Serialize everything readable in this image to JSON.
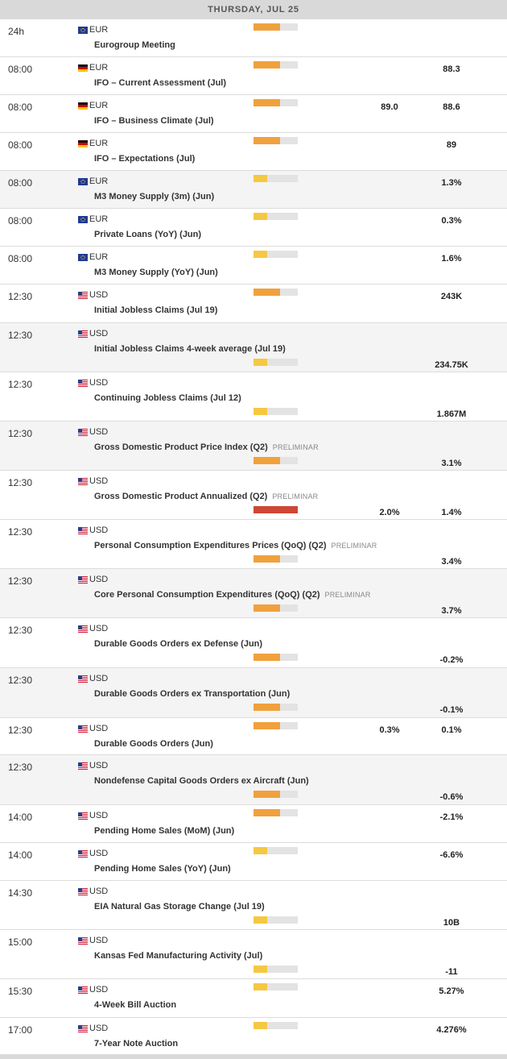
{
  "header": {
    "date": "THURSDAY, JUL 25"
  },
  "colors": {
    "high": "#cf4634",
    "medium": "#f0a13c",
    "low": "#f5c842",
    "track": "#e3e3e3"
  },
  "events": [
    {
      "time": "24h",
      "currency": "EUR",
      "flag": "eu-flag",
      "title": "Eurogroup Meeting",
      "impact": "medium",
      "impact_level": 0.6,
      "preliminar": "",
      "actual": "",
      "previous": ""
    },
    {
      "time": "08:00",
      "currency": "EUR",
      "flag": "de-flag",
      "title": "IFO – Current Assessment (Jul)",
      "impact": "medium",
      "impact_level": 0.6,
      "preliminar": "",
      "actual": "",
      "previous": "88.3"
    },
    {
      "time": "08:00",
      "currency": "EUR",
      "flag": "de-flag",
      "title": "IFO – Business Climate (Jul)",
      "impact": "medium",
      "impact_level": 0.6,
      "preliminar": "",
      "actual": "89.0",
      "previous": "88.6"
    },
    {
      "time": "08:00",
      "currency": "EUR",
      "flag": "de-flag",
      "title": "IFO – Expectations (Jul)",
      "impact": "medium",
      "impact_level": 0.6,
      "preliminar": "",
      "actual": "",
      "previous": "89"
    },
    {
      "time": "08:00",
      "currency": "EUR",
      "flag": "eu-flag",
      "title": "M3 Money Supply (3m) (Jun)",
      "impact": "low",
      "impact_level": 0.3,
      "preliminar": "",
      "actual": "",
      "previous": "1.3%"
    },
    {
      "time": "08:00",
      "currency": "EUR",
      "flag": "eu-flag",
      "title": "Private Loans (YoY) (Jun)",
      "impact": "low",
      "impact_level": 0.3,
      "preliminar": "",
      "actual": "",
      "previous": "0.3%"
    },
    {
      "time": "08:00",
      "currency": "EUR",
      "flag": "eu-flag",
      "title": "M3 Money Supply (YoY) (Jun)",
      "impact": "low",
      "impact_level": 0.3,
      "preliminar": "",
      "actual": "",
      "previous": "1.6%"
    },
    {
      "time": "12:30",
      "currency": "USD",
      "flag": "us-flag",
      "title": "Initial Jobless Claims (Jul 19)",
      "impact": "medium",
      "impact_level": 0.6,
      "preliminar": "",
      "actual": "",
      "previous": "243K"
    },
    {
      "time": "12:30",
      "currency": "USD",
      "flag": "us-flag",
      "title": "Initial Jobless Claims 4-week average (Jul 19)",
      "impact": "low",
      "impact_level": 0.3,
      "preliminar": "",
      "actual": "",
      "previous": "234.75K"
    },
    {
      "time": "12:30",
      "currency": "USD",
      "flag": "us-flag",
      "title": "Continuing Jobless Claims (Jul 12)",
      "impact": "low",
      "impact_level": 0.3,
      "preliminar": "",
      "actual": "",
      "previous": "1.867M"
    },
    {
      "time": "12:30",
      "currency": "USD",
      "flag": "us-flag",
      "title": "Gross Domestic Product Price Index (Q2)",
      "impact": "medium",
      "impact_level": 0.6,
      "preliminar": "PRELIMINAR",
      "actual": "",
      "previous": "3.1%"
    },
    {
      "time": "12:30",
      "currency": "USD",
      "flag": "us-flag",
      "title": "Gross Domestic Product Annualized (Q2)",
      "impact": "high",
      "impact_level": 1.0,
      "preliminar": "PRELIMINAR",
      "actual": "2.0%",
      "previous": "1.4%"
    },
    {
      "time": "12:30",
      "currency": "USD",
      "flag": "us-flag",
      "title": "Personal Consumption Expenditures Prices (QoQ) (Q2)",
      "impact": "medium",
      "impact_level": 0.6,
      "preliminar": "PRELIMINAR",
      "actual": "",
      "previous": "3.4%"
    },
    {
      "time": "12:30",
      "currency": "USD",
      "flag": "us-flag",
      "title": "Core Personal Consumption Expenditures (QoQ) (Q2)",
      "impact": "medium",
      "impact_level": 0.6,
      "preliminar": "PRELIMINAR",
      "actual": "",
      "previous": "3.7%"
    },
    {
      "time": "12:30",
      "currency": "USD",
      "flag": "us-flag",
      "title": "Durable Goods Orders ex Defense (Jun)",
      "impact": "medium",
      "impact_level": 0.6,
      "preliminar": "",
      "actual": "",
      "previous": "-0.2%"
    },
    {
      "time": "12:30",
      "currency": "USD",
      "flag": "us-flag",
      "title": "Durable Goods Orders ex Transportation (Jun)",
      "impact": "medium",
      "impact_level": 0.6,
      "preliminar": "",
      "actual": "",
      "previous": "-0.1%"
    },
    {
      "time": "12:30",
      "currency": "USD",
      "flag": "us-flag",
      "title": "Durable Goods Orders (Jun)",
      "impact": "medium",
      "impact_level": 0.6,
      "preliminar": "",
      "actual": "0.3%",
      "previous": "0.1%"
    },
    {
      "time": "12:30",
      "currency": "USD",
      "flag": "us-flag",
      "title": "Nondefense Capital Goods Orders ex Aircraft (Jun)",
      "impact": "medium",
      "impact_level": 0.6,
      "preliminar": "",
      "actual": "",
      "previous": "-0.6%"
    },
    {
      "time": "14:00",
      "currency": "USD",
      "flag": "us-flag",
      "title": "Pending Home Sales (MoM) (Jun)",
      "impact": "medium",
      "impact_level": 0.6,
      "preliminar": "",
      "actual": "",
      "previous": "-2.1%"
    },
    {
      "time": "14:00",
      "currency": "USD",
      "flag": "us-flag",
      "title": "Pending Home Sales (YoY) (Jun)",
      "impact": "low",
      "impact_level": 0.3,
      "preliminar": "",
      "actual": "",
      "previous": "-6.6%"
    },
    {
      "time": "14:30",
      "currency": "USD",
      "flag": "us-flag",
      "title": "EIA Natural Gas Storage Change (Jul 19)",
      "impact": "low",
      "impact_level": 0.3,
      "preliminar": "",
      "actual": "",
      "previous": "10B"
    },
    {
      "time": "15:00",
      "currency": "USD",
      "flag": "us-flag",
      "title": "Kansas Fed Manufacturing Activity (Jul)",
      "impact": "low",
      "impact_level": 0.3,
      "preliminar": "",
      "actual": "",
      "previous": "-11"
    },
    {
      "time": "15:30",
      "currency": "USD",
      "flag": "us-flag",
      "title": "4-Week Bill Auction",
      "impact": "low",
      "impact_level": 0.3,
      "preliminar": "",
      "actual": "",
      "previous": "5.27%"
    },
    {
      "time": "17:00",
      "currency": "USD",
      "flag": "us-flag",
      "title": "7-Year Note Auction",
      "impact": "low",
      "impact_level": 0.3,
      "preliminar": "",
      "actual": "",
      "previous": "4.276%"
    }
  ]
}
